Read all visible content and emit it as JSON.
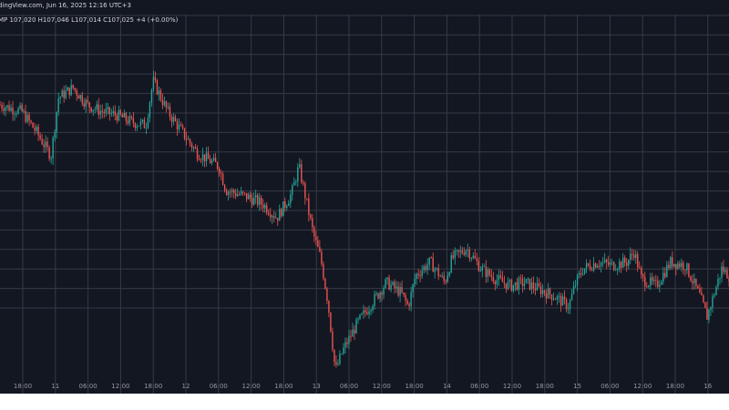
{
  "header": {
    "source_date": "dingView.com, Jun 16, 2025 12:16 UTC+3",
    "ohlc": "MP  107,020  H107,046  L107,014  C107,025  +4 (+0.00%)"
  },
  "chart_data": {
    "type": "candlestick",
    "background_color": "#131722",
    "grid_color": "#363a45",
    "grid": true,
    "up_color": "#26a69a",
    "down_color": "#ef5350",
    "x_tick_labels": [
      "18:00",
      "11",
      "06:00",
      "12:00",
      "18:00",
      "12",
      "06:00",
      "12:00",
      "18:00",
      "13",
      "06:00",
      "12:00",
      "18:00",
      "14",
      "06:00",
      "12:00",
      "18:00",
      "15",
      "06:00",
      "12:00",
      "18:00",
      "16"
    ],
    "price_path": [
      [
        0.0,
        0.8
      ],
      [
        0.03,
        0.78
      ],
      [
        0.05,
        0.72
      ],
      [
        0.07,
        0.65
      ],
      [
        0.08,
        0.82
      ],
      [
        0.1,
        0.85
      ],
      [
        0.12,
        0.8
      ],
      [
        0.14,
        0.78
      ],
      [
        0.16,
        0.77
      ],
      [
        0.18,
        0.75
      ],
      [
        0.2,
        0.74
      ],
      [
        0.21,
        0.87
      ],
      [
        0.23,
        0.78
      ],
      [
        0.25,
        0.72
      ],
      [
        0.27,
        0.66
      ],
      [
        0.3,
        0.62
      ],
      [
        0.31,
        0.55
      ],
      [
        0.34,
        0.53
      ],
      [
        0.36,
        0.51
      ],
      [
        0.38,
        0.47
      ],
      [
        0.4,
        0.54
      ],
      [
        0.41,
        0.62
      ],
      [
        0.42,
        0.52
      ],
      [
        0.43,
        0.42
      ],
      [
        0.44,
        0.35
      ],
      [
        0.45,
        0.22
      ],
      [
        0.46,
        0.02
      ],
      [
        0.47,
        0.08
      ],
      [
        0.49,
        0.16
      ],
      [
        0.51,
        0.22
      ],
      [
        0.53,
        0.28
      ],
      [
        0.55,
        0.25
      ],
      [
        0.56,
        0.21
      ],
      [
        0.57,
        0.3
      ],
      [
        0.59,
        0.34
      ],
      [
        0.61,
        0.28
      ],
      [
        0.62,
        0.35
      ],
      [
        0.64,
        0.38
      ],
      [
        0.66,
        0.32
      ],
      [
        0.68,
        0.29
      ],
      [
        0.7,
        0.27
      ],
      [
        0.72,
        0.28
      ],
      [
        0.74,
        0.26
      ],
      [
        0.76,
        0.24
      ],
      [
        0.78,
        0.21
      ],
      [
        0.79,
        0.28
      ],
      [
        0.8,
        0.32
      ],
      [
        0.82,
        0.34
      ],
      [
        0.84,
        0.33
      ],
      [
        0.86,
        0.34
      ],
      [
        0.87,
        0.37
      ],
      [
        0.88,
        0.29
      ],
      [
        0.9,
        0.27
      ],
      [
        0.92,
        0.34
      ],
      [
        0.94,
        0.33
      ],
      [
        0.96,
        0.24
      ],
      [
        0.97,
        0.18
      ],
      [
        0.99,
        0.32
      ],
      [
        1.0,
        0.3
      ]
    ]
  }
}
